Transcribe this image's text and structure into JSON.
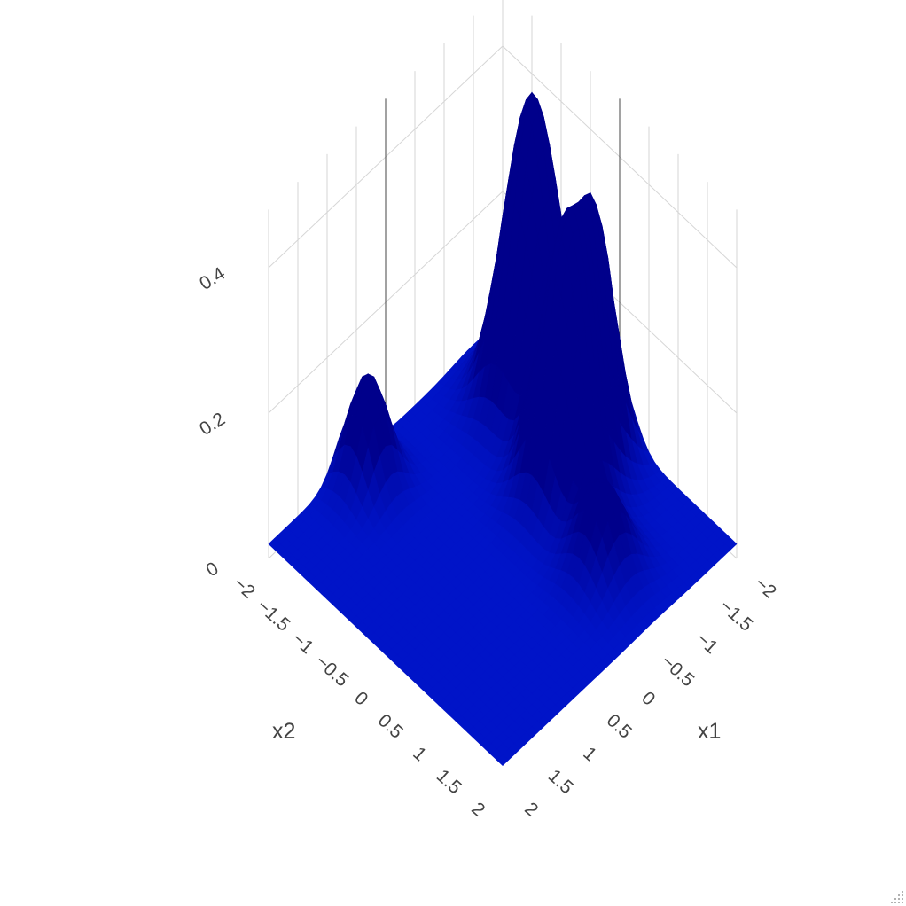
{
  "chart_data": {
    "type": "surface",
    "title": "",
    "colorscale": [
      "#00008b",
      "#0000ff"
    ],
    "x_axis": {
      "title": "x1",
      "range": [
        -2,
        2
      ],
      "ticks": [
        "−2",
        "−1.5",
        "−1",
        "−0.5",
        "0",
        "0.5",
        "1",
        "1.5",
        "2"
      ]
    },
    "y_axis": {
      "title": "x2",
      "range": [
        -2,
        2
      ],
      "ticks": [
        "−2",
        "−1.5",
        "−1",
        "−0.5",
        "0",
        "0.5",
        "1",
        "1.5",
        "2"
      ]
    },
    "z_axis": {
      "title": "",
      "range": [
        0,
        0.45
      ],
      "ticks": [
        "0",
        "0.2",
        "0.4"
      ]
    },
    "peaks": [
      {
        "x1": -1.5,
        "x2": -1.0,
        "height": 0.43,
        "width": 0.35
      },
      {
        "x1": -1.0,
        "x2": 0.1,
        "height": 0.37,
        "width": 0.33
      },
      {
        "x1": -1.6,
        "x2": 0.0,
        "height": 0.27,
        "width": 0.25
      },
      {
        "x1": -0.6,
        "x2": 1.1,
        "height": 0.12,
        "width": 0.3
      },
      {
        "x1": 0.6,
        "x2": -1.7,
        "height": 0.15,
        "width": 0.25
      }
    ],
    "base_level": 0.02
  }
}
